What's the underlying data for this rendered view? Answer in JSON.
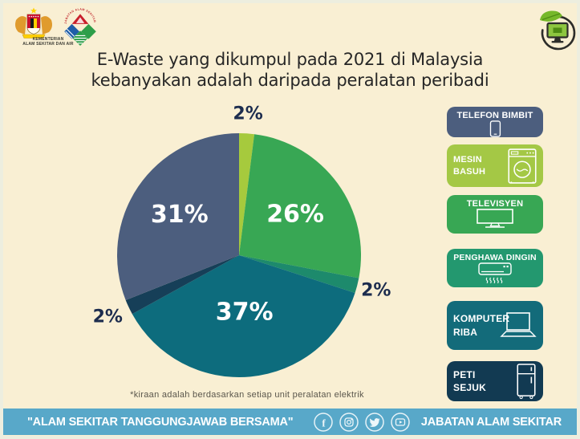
{
  "header": {
    "ministry_logo": {
      "caption_line1": "KEMENTERIAN",
      "caption_line2": "ALAM SEKITAR DAN AIR"
    },
    "jas_logo_arc_text": "JABATAN ALAM SEKITAR MALAYSIA",
    "ewaste_icon": "monitor-with-leaf-badge"
  },
  "title": {
    "line1": "E-Waste yang dikumpul pada 2021 di Malaysia",
    "line2": "kebanyakan adalah daripada peralatan peribadi"
  },
  "chart_data": {
    "type": "pie",
    "title": "E-Waste yang dikumpul pada 2021 di Malaysia kebanyakan adalah daripada peralatan peribadi",
    "categories": [
      "MESIN BASUH",
      "TELEVISYEN",
      "PENGHAWA DINGIN",
      "KOMPUTER RIBA",
      "PETI SEJUK",
      "TELEFON BIMBIT"
    ],
    "values": [
      2,
      26,
      2,
      37,
      2,
      31
    ],
    "colors": [
      "#a6ca3d",
      "#38a754",
      "#1d8a6c",
      "#0d6c7d",
      "#163f58",
      "#4c5e7e"
    ],
    "label_suffix": "%",
    "start_angle_deg": 0,
    "direction": "clockwise",
    "legend_position": "right",
    "label_radius_factors": [
      1.16,
      0.57,
      1.16,
      0.47,
      1.19,
      0.59
    ]
  },
  "legend": {
    "items": [
      {
        "label": "TELEFON BIMBIT",
        "color": "#4c5e7e",
        "icon": "smartphone-icon"
      },
      {
        "label": "MESIN BASUH",
        "color": "#a4c845",
        "icon": "washing-machine-icon"
      },
      {
        "label": "TELEVISYEN",
        "color": "#38a754",
        "icon": "tv-icon"
      },
      {
        "label": "PENGHAWA DINGIN",
        "color": "#23986f",
        "icon": "air-conditioner-icon"
      },
      {
        "label": "KOMPUTER RIBA",
        "color": "#136b7a",
        "icon": "laptop-icon"
      },
      {
        "label": "PETI SEJUK",
        "color": "#123a52",
        "icon": "fridge-icon"
      }
    ]
  },
  "footnote": "*kiraan adalah berdasarkan setiap unit peralatan elektrik",
  "footer": {
    "slogan": "\"ALAM SEKITAR TANGGUNGJAWAB BERSAMA\"",
    "agency": "JABATAN ALAM SEKITAR",
    "social_icons": [
      "facebook",
      "instagram",
      "twitter",
      "youtube"
    ]
  },
  "colors": {
    "background": "#f9efd3",
    "footer_bar": "#58a8c9",
    "title_text": "#262626",
    "outside_label_text": "#1c2c4e",
    "border": "#edeedf"
  }
}
